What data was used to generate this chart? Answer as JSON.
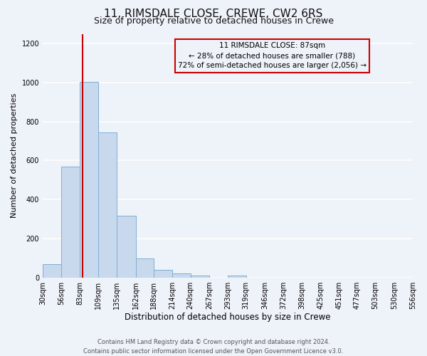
{
  "title": "11, RIMSDALE CLOSE, CREWE, CW2 6RS",
  "subtitle": "Size of property relative to detached houses in Crewe",
  "xlabel": "Distribution of detached houses by size in Crewe",
  "ylabel": "Number of detached properties",
  "bin_edges": [
    30,
    56,
    83,
    109,
    135,
    162,
    188,
    214,
    240,
    267,
    293,
    319,
    346,
    372,
    398,
    425,
    451,
    477,
    503,
    530,
    556
  ],
  "bar_heights": [
    70,
    570,
    1005,
    745,
    315,
    97,
    40,
    22,
    10,
    0,
    10,
    0,
    0,
    0,
    0,
    0,
    0,
    0,
    0,
    0
  ],
  "bar_facecolor": "#c9d9ed",
  "bar_edgecolor": "#7bafd4",
  "property_size": 87,
  "vline_color": "#cc0000",
  "annotation_box_edgecolor": "#cc0000",
  "annotation_text_line1": "11 RIMSDALE CLOSE: 87sqm",
  "annotation_text_line2": "← 28% of detached houses are smaller (788)",
  "annotation_text_line3": "72% of semi-detached houses are larger (2,056) →",
  "ylim": [
    0,
    1250
  ],
  "yticks": [
    0,
    200,
    400,
    600,
    800,
    1000,
    1200
  ],
  "background_color": "#eef2f9",
  "grid_color": "#ffffff",
  "footer_text": "Contains HM Land Registry data © Crown copyright and database right 2024.\nContains public sector information licensed under the Open Government Licence v3.0.",
  "title_fontsize": 11,
  "subtitle_fontsize": 9,
  "xlabel_fontsize": 8.5,
  "ylabel_fontsize": 8,
  "tick_fontsize": 7,
  "footer_fontsize": 6,
  "annotation_fontsize": 7.5
}
